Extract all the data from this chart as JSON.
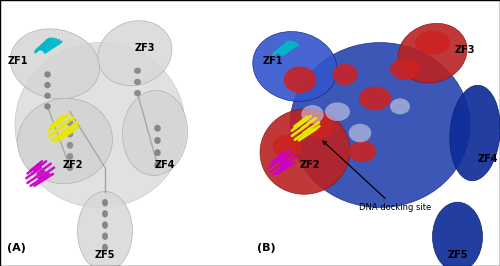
{
  "figsize": [
    5.0,
    2.66
  ],
  "dpi": 100,
  "background_color": "#ffffff",
  "panel_A_label": "(A)",
  "panel_B_label": "(B)",
  "label_fontsize": 7,
  "panel_label_fontsize": 8,
  "annotation_text": "DNA docking site"
}
